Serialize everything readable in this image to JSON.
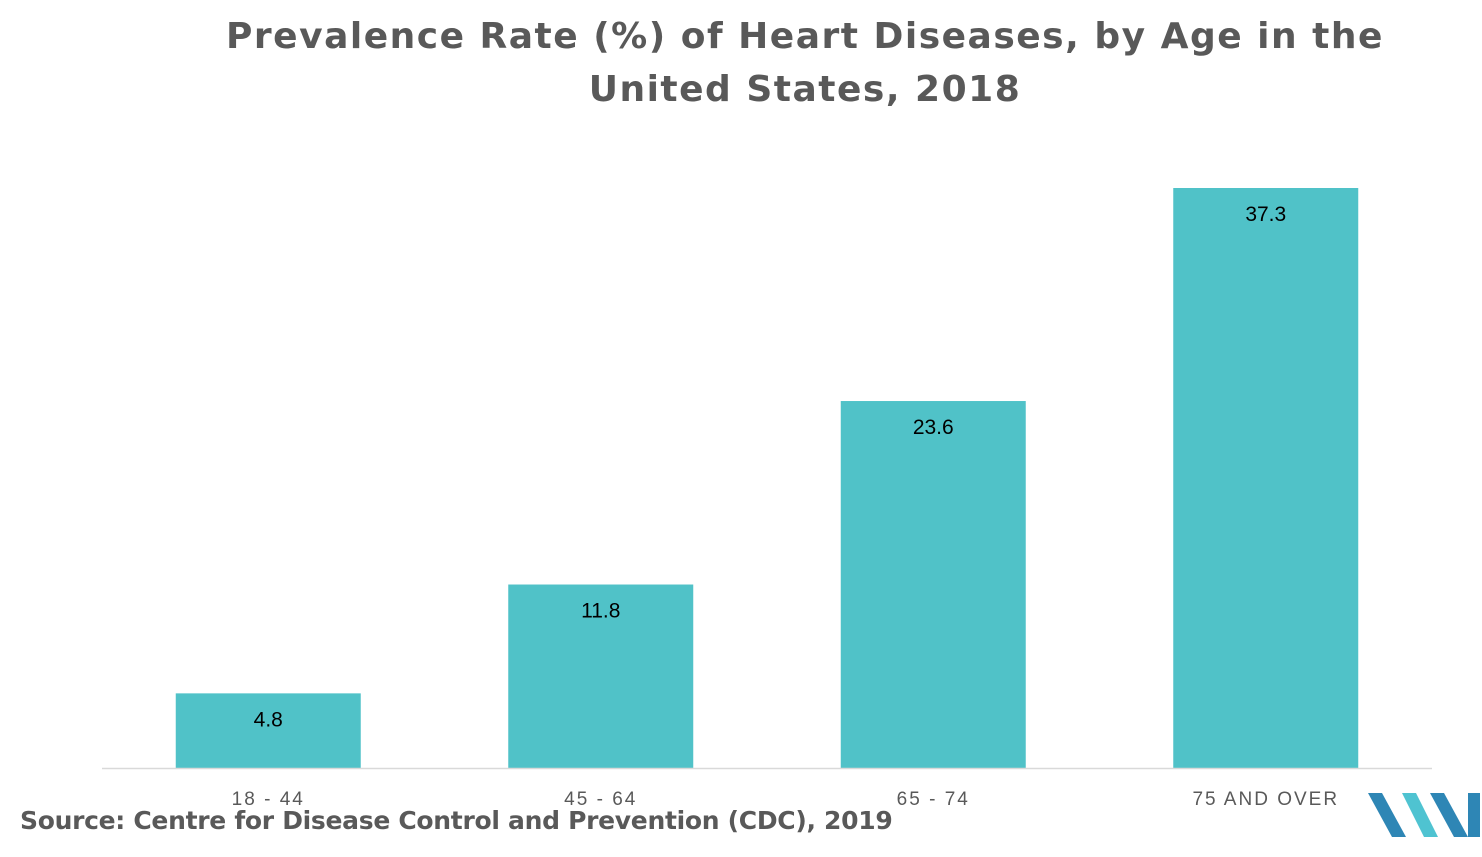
{
  "chart_data": {
    "type": "bar",
    "title": "Prevalence Rate (%) of Heart Diseases, by Age in the United States, 2018",
    "categories": [
      "18 - 44",
      "45 - 64",
      "65 - 74",
      "75 AND OVER"
    ],
    "values": [
      4.8,
      11.8,
      23.6,
      37.3
    ],
    "data_labels": [
      "4.8",
      "11.8",
      "23.6",
      "37.3"
    ],
    "xlabel": "",
    "ylabel": "",
    "ylim": [
      0,
      40
    ],
    "grid": false,
    "legend": "none",
    "bar_color": "#50C2C8"
  },
  "source": "Source: Centre for Disease Control and Prevention (CDC), 2019",
  "colors": {
    "title": "#595959",
    "axis": "#D9D9D9",
    "tick_label": "#595959",
    "data_label": "#000000",
    "logo_dark": "#2E86B5",
    "logo_light": "#4FC3D1"
  }
}
